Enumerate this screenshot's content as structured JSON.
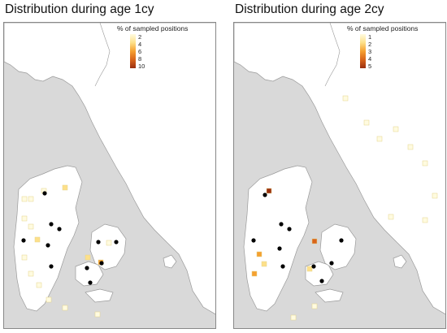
{
  "panels": [
    {
      "title": "Distribution during age 1cy",
      "legend": {
        "title": "% of sampled positions",
        "ticks": [
          "2",
          "4",
          "6",
          "8",
          "10"
        ],
        "gradient": [
          "#fffbe0",
          "#fde08a",
          "#f5a030",
          "#d9641a",
          "#9a3010"
        ]
      },
      "sites_count_visible": 11
    },
    {
      "title": "Distribution during age 2cy",
      "legend": {
        "title": "% of sampled positions",
        "ticks": [
          "1",
          "2",
          "3",
          "4",
          "5"
        ],
        "gradient": [
          "#fffbe0",
          "#fde08a",
          "#f5a030",
          "#d9641a",
          "#9a3010"
        ]
      },
      "sites_count_visible": 10
    }
  ],
  "colors": {
    "sea": "#d9d9d9",
    "land": "#ffffff",
    "coast": "#9a9a9a",
    "cell_outline": "#e6d48a",
    "site": "#000000"
  }
}
